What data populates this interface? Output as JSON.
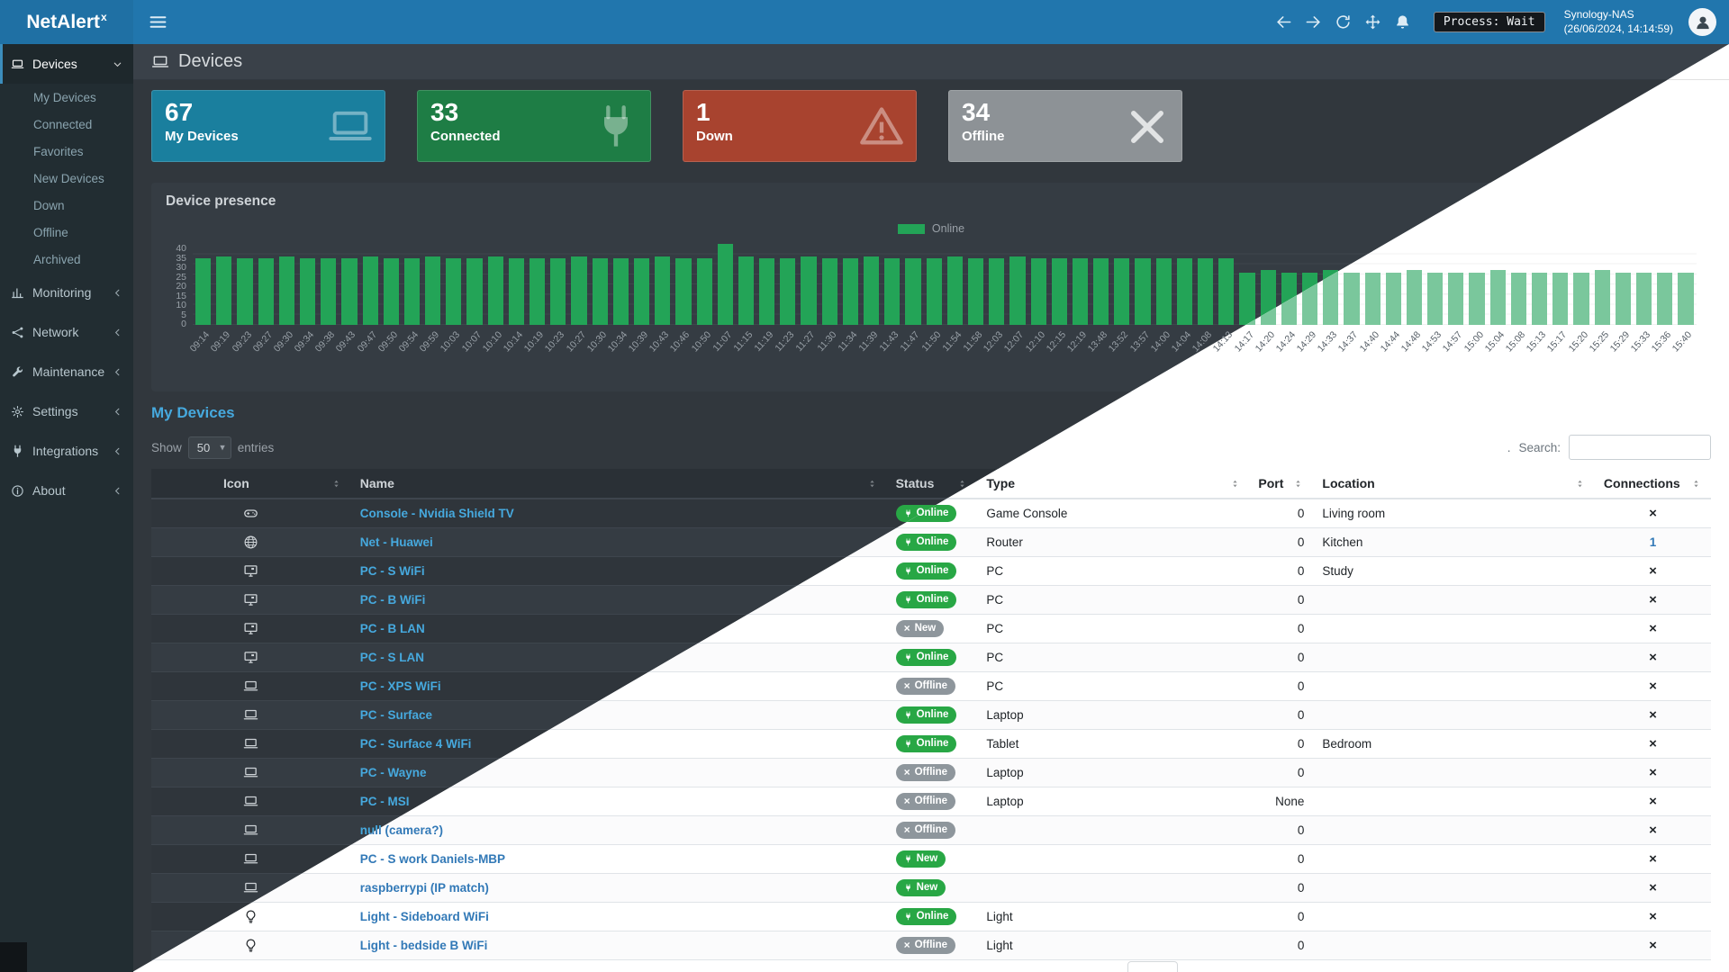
{
  "navbar": {
    "logo_text": "NetAlert",
    "logo_sup": "x",
    "process_label": "Process: Wait",
    "host_name": "Synology-NAS",
    "host_time": "(26/06/2024, 14:14:59)"
  },
  "sidebar": {
    "items": [
      {
        "label": "Devices",
        "icon": "laptop",
        "active": true,
        "expanded": true
      },
      {
        "label": "Monitoring",
        "icon": "chart"
      },
      {
        "label": "Network",
        "icon": "network"
      },
      {
        "label": "Maintenance",
        "icon": "wrench"
      },
      {
        "label": "Settings",
        "icon": "gear"
      },
      {
        "label": "Integrations",
        "icon": "plug"
      },
      {
        "label": "About",
        "icon": "info"
      }
    ],
    "devices_children": [
      "My Devices",
      "Connected",
      "Favorites",
      "New Devices",
      "Down",
      "Offline",
      "Archived"
    ]
  },
  "page": {
    "title": "Devices"
  },
  "summary_cards": [
    {
      "value": "67",
      "label": "My Devices",
      "icon": "laptop",
      "color": "#1a7f9e"
    },
    {
      "value": "33",
      "label": "Connected",
      "icon": "plug",
      "color": "#1e7d45"
    },
    {
      "value": "1",
      "label": "Down",
      "icon": "warning",
      "color": "#a8432f"
    },
    {
      "value": "34",
      "label": "Offline",
      "icon": "x",
      "color": "#8d9296"
    }
  ],
  "chart_data": {
    "type": "bar",
    "title": "Device presence",
    "legend": [
      "Online"
    ],
    "xlabel": "",
    "ylabel": "",
    "ylim": [
      0,
      40
    ],
    "yticks": [
      0,
      5,
      10,
      15,
      20,
      25,
      30,
      35,
      40
    ],
    "grid": true,
    "legend_position": "top-center",
    "bar_color_dark": "#23a457",
    "bar_color_light": "#7ac79c",
    "x": [
      "09:14",
      "09:19",
      "09:23",
      "09:27",
      "09:30",
      "09:34",
      "09:38",
      "09:43",
      "09:47",
      "09:50",
      "09:54",
      "09:59",
      "10:03",
      "10:07",
      "10:10",
      "10:14",
      "10:19",
      "10:23",
      "10:27",
      "10:30",
      "10:34",
      "10:39",
      "10:43",
      "10:46",
      "10:50",
      "11:07",
      "11:15",
      "11:19",
      "11:23",
      "11:27",
      "11:30",
      "11:34",
      "11:39",
      "11:43",
      "11:47",
      "11:50",
      "11:54",
      "11:58",
      "12:03",
      "12:07",
      "12:10",
      "12:15",
      "12:19",
      "13:48",
      "13:52",
      "13:57",
      "14:00",
      "14:04",
      "14:08",
      "14:13",
      "14:17",
      "14:20",
      "14:24",
      "14:29",
      "14:33",
      "14:37",
      "14:40",
      "14:44",
      "14:48",
      "14:53",
      "14:57",
      "15:00",
      "15:04",
      "15:08",
      "15:13",
      "15:17",
      "15:20",
      "15:25",
      "15:29",
      "15:33",
      "15:36",
      "15:40"
    ],
    "series": [
      {
        "name": "Online",
        "values": [
          33,
          34,
          33,
          33,
          34,
          33,
          33,
          33,
          34,
          33,
          33,
          34,
          33,
          33,
          34,
          33,
          33,
          33,
          34,
          33,
          33,
          33,
          34,
          33,
          33,
          40,
          34,
          33,
          33,
          34,
          33,
          33,
          34,
          33,
          33,
          33,
          34,
          33,
          33,
          34,
          33,
          33,
          33,
          33,
          33,
          33,
          33,
          33,
          33,
          33,
          26,
          27,
          26,
          26,
          27,
          26,
          26,
          26,
          27,
          26,
          26,
          26,
          27,
          26,
          26,
          26,
          26,
          27,
          26,
          26,
          26,
          26
        ]
      }
    ]
  },
  "devices_panel": {
    "title": "My Devices",
    "show_label": "Show",
    "page_size": "50",
    "entries_label": "entries",
    "search_dot": ".",
    "search_label": "Search:",
    "search_value": "",
    "columns": [
      "Icon",
      "Name",
      "Status",
      "Type",
      "Port",
      "Location",
      "Connections"
    ],
    "rows": [
      {
        "icon": "gamepad",
        "name": "Console - Nvidia Shield TV",
        "badge": {
          "text": "Online",
          "variant": "success",
          "icon": "plug"
        },
        "type": "Game Console",
        "port": "0",
        "location": "Living room",
        "connections": "x"
      },
      {
        "icon": "globe",
        "name": "Net - Huawei",
        "badge": {
          "text": "Online",
          "variant": "success",
          "icon": "plug"
        },
        "type": "Router",
        "port": "0",
        "location": "Kitchen",
        "connections": "1"
      },
      {
        "icon": "desktop",
        "name": "PC - S WiFi",
        "badge": {
          "text": "Online",
          "variant": "success",
          "icon": "plug"
        },
        "type": "PC",
        "port": "0",
        "location": "Study",
        "connections": "x"
      },
      {
        "icon": "desktop",
        "name": "PC - B WiFi",
        "badge": {
          "text": "Online",
          "variant": "success",
          "icon": "plug"
        },
        "type": "PC",
        "port": "0",
        "location": "",
        "connections": "x"
      },
      {
        "icon": "desktop",
        "name": "PC - B LAN",
        "badge": {
          "text": "New",
          "variant": "muted",
          "icon": "x"
        },
        "type": "PC",
        "port": "0",
        "location": "",
        "connections": "x"
      },
      {
        "icon": "desktop",
        "name": "PC - S LAN",
        "badge": {
          "text": "Online",
          "variant": "success",
          "icon": "plug"
        },
        "type": "PC",
        "port": "0",
        "location": "",
        "connections": "x"
      },
      {
        "icon": "laptop",
        "name": "PC - XPS WiFi",
        "badge": {
          "text": "Offline",
          "variant": "muted",
          "icon": "x"
        },
        "type": "PC",
        "port": "0",
        "location": "",
        "connections": "x"
      },
      {
        "icon": "laptop",
        "name": "PC - Surface",
        "badge": {
          "text": "Online",
          "variant": "success",
          "icon": "plug"
        },
        "type": "Laptop",
        "port": "0",
        "location": "",
        "connections": "x"
      },
      {
        "icon": "laptop",
        "name": "PC - Surface 4 WiFi",
        "badge": {
          "text": "Online",
          "variant": "success",
          "icon": "plug"
        },
        "type": "Tablet",
        "port": "0",
        "location": "Bedroom",
        "connections": "x"
      },
      {
        "icon": "laptop",
        "name": "PC - Wayne",
        "badge": {
          "text": "Offline",
          "variant": "muted",
          "icon": "x"
        },
        "type": "Laptop",
        "port": "0",
        "location": "",
        "connections": "x"
      },
      {
        "icon": "laptop",
        "name": "PC - MSI",
        "badge": {
          "text": "Offline",
          "variant": "muted",
          "icon": "x"
        },
        "type": "Laptop",
        "port": "None",
        "location": "",
        "connections": "x"
      },
      {
        "icon": "laptop",
        "name": "null (camera?)",
        "badge": {
          "text": "Offline",
          "variant": "muted",
          "icon": "x"
        },
        "type": "",
        "port": "0",
        "location": "",
        "connections": "x"
      },
      {
        "icon": "laptop",
        "name": "PC - S work Daniels-MBP",
        "badge": {
          "text": "New",
          "variant": "success",
          "icon": "plug"
        },
        "type": "",
        "port": "0",
        "location": "",
        "connections": "x"
      },
      {
        "icon": "laptop",
        "name": "raspberrypi (IP match)",
        "badge": {
          "text": "New",
          "variant": "success",
          "icon": "plug"
        },
        "type": "",
        "port": "0",
        "location": "",
        "connections": "x"
      },
      {
        "icon": "bulb",
        "name": "Light - Sideboard WiFi",
        "badge": {
          "text": "Online",
          "variant": "success",
          "icon": "plug"
        },
        "type": "Light",
        "port": "0",
        "location": "",
        "connections": "x"
      },
      {
        "icon": "bulb",
        "name": "Light - bedside B WiFi",
        "badge": {
          "text": "Offline",
          "variant": "muted",
          "icon": "x"
        },
        "type": "Light",
        "port": "0",
        "location": "",
        "connections": "x"
      }
    ]
  }
}
